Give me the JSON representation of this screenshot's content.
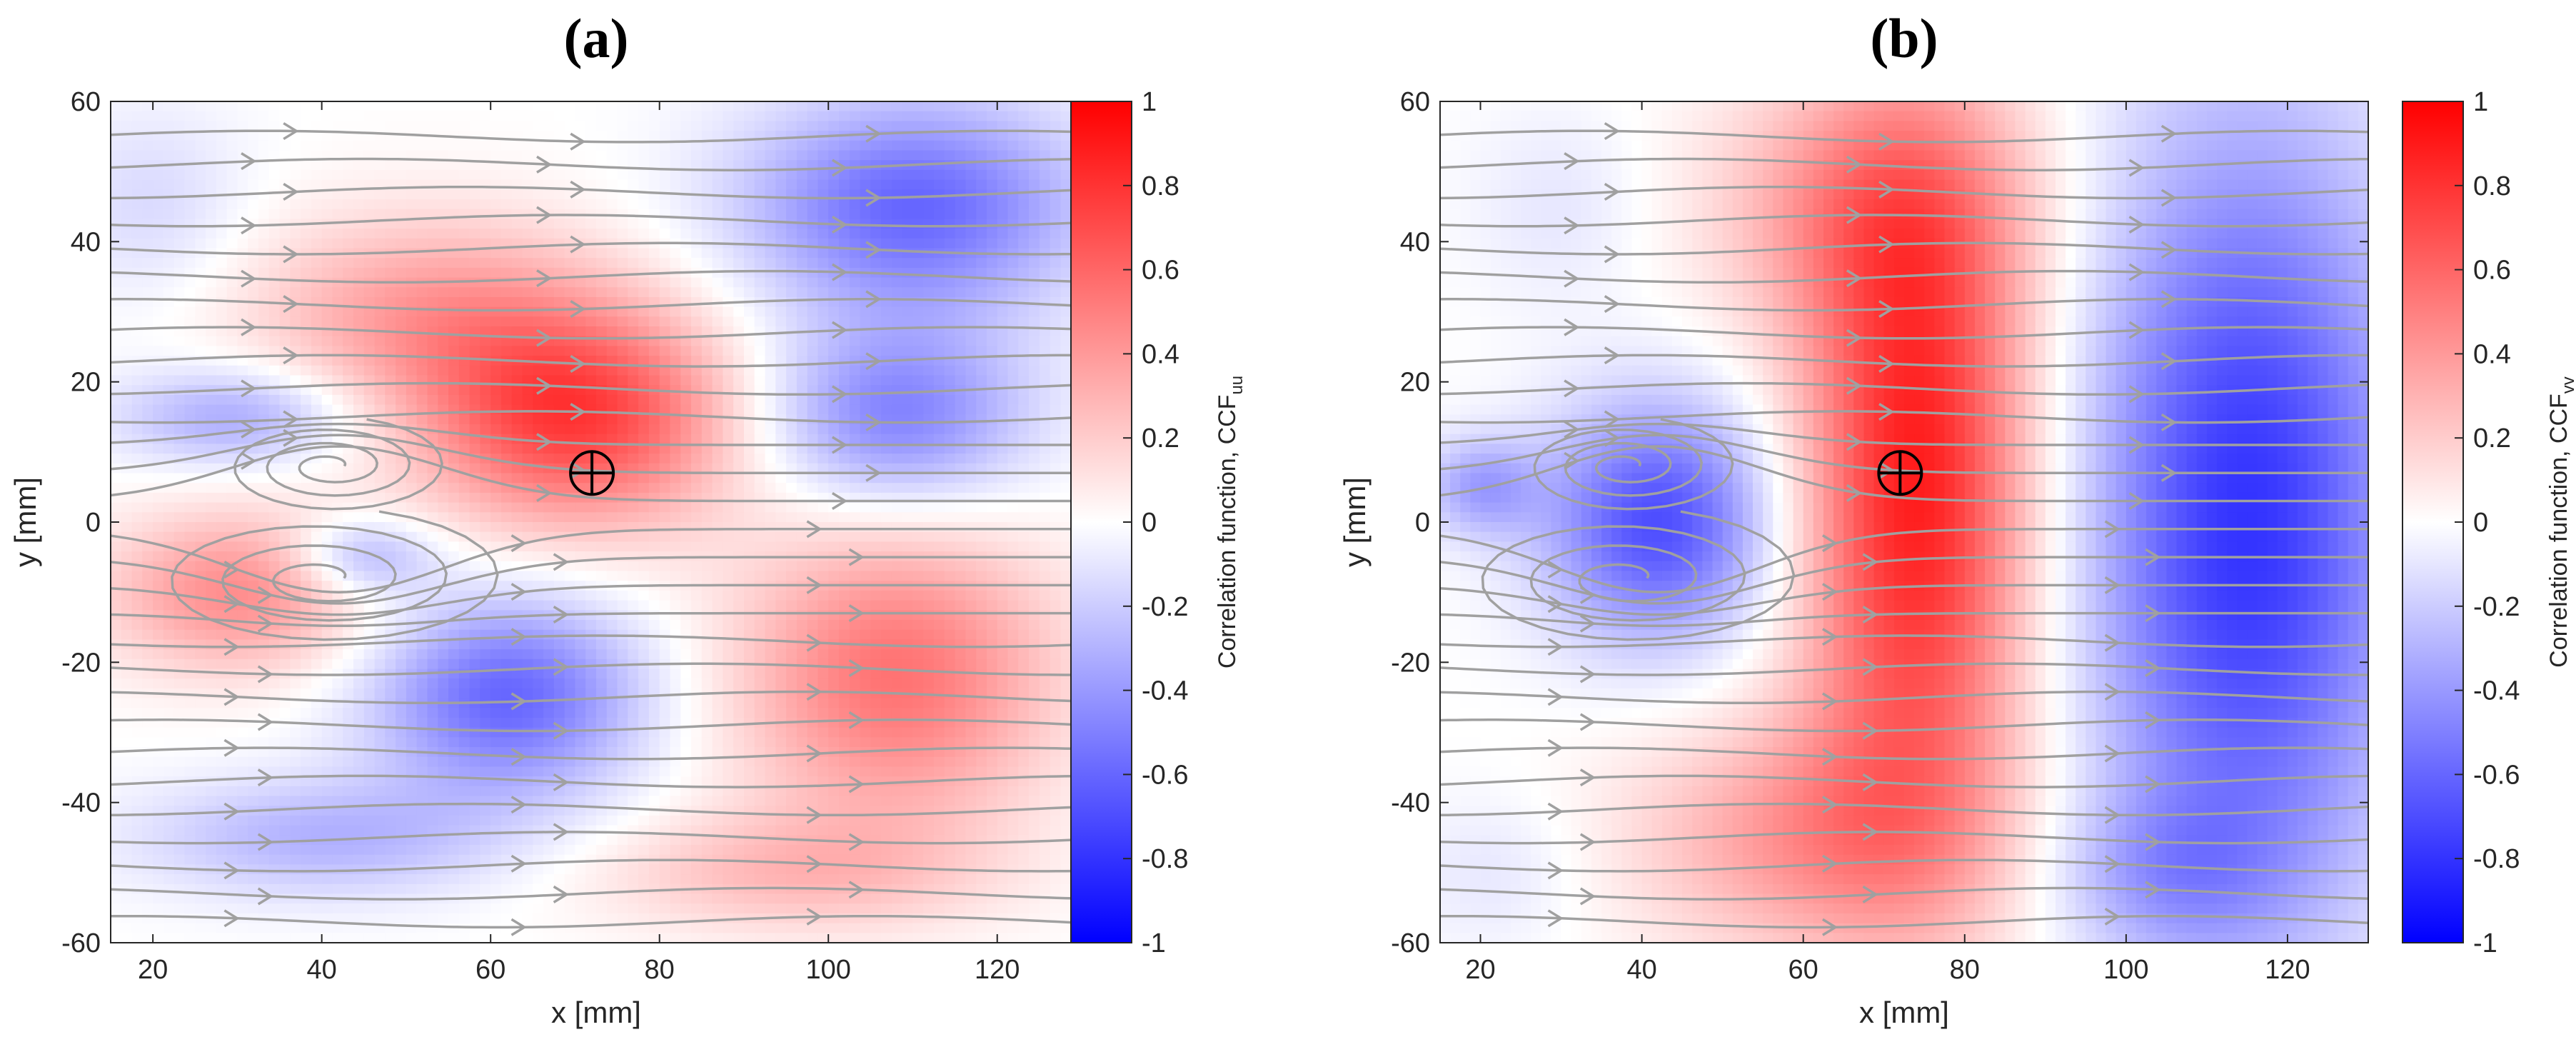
{
  "figure": {
    "colormap": {
      "negative": "#0000ff",
      "zero": "#ffffff",
      "positive": "#ff0000"
    },
    "streamline_color": "#a0a0a0",
    "marker_color": "#000000"
  },
  "chart_data": [
    {
      "type": "heatmap",
      "panel_title": "(a)",
      "xlabel": "x [mm]",
      "ylabel": "y [mm]",
      "xlim": [
        15,
        130
      ],
      "ylim": [
        -60,
        60
      ],
      "xticks": [
        20,
        40,
        60,
        80,
        100,
        120
      ],
      "yticks": [
        60,
        40,
        20,
        0,
        -20,
        -40,
        -60
      ],
      "colorbar": {
        "label_main": "Correlation function, CCF",
        "label_sub": "uu",
        "range": [
          -1,
          1
        ],
        "ticks": [
          "1",
          "0.8",
          "0.6",
          "0.4",
          "0.2",
          "0",
          "-0.2",
          "-0.4",
          "-0.6",
          "-0.8",
          "-1"
        ]
      },
      "reference_point": {
        "x": 72,
        "y": 7
      },
      "blobs": [
        {
          "x": 70,
          "y": 15,
          "sx": 13,
          "sy": 11,
          "v": 0.75
        },
        {
          "x": 52,
          "y": 30,
          "sx": 15,
          "sy": 10,
          "v": 0.35
        },
        {
          "x": 30,
          "y": -10,
          "sx": 11,
          "sy": 8,
          "v": 0.45
        },
        {
          "x": 108,
          "y": -22,
          "sx": 13,
          "sy": 15,
          "v": 0.55
        },
        {
          "x": 95,
          "y": -50,
          "sx": 16,
          "sy": 6,
          "v": 0.25
        },
        {
          "x": 110,
          "y": 45,
          "sx": 14,
          "sy": 11,
          "v": -0.6
        },
        {
          "x": 108,
          "y": 15,
          "sx": 11,
          "sy": 9,
          "v": -0.5
        },
        {
          "x": 62,
          "y": -25,
          "sx": 11,
          "sy": 10,
          "v": -0.6
        },
        {
          "x": 30,
          "y": 15,
          "sx": 10,
          "sy": 5,
          "v": -0.35
        },
        {
          "x": 45,
          "y": -5,
          "sx": 6,
          "sy": 4,
          "v": -0.35
        },
        {
          "x": 40,
          "y": -45,
          "sx": 15,
          "sy": 6,
          "v": -0.3
        },
        {
          "x": 20,
          "y": 45,
          "sx": 8,
          "sy": 10,
          "v": -0.15
        }
      ],
      "vortices": [
        {
          "x": 41,
          "y": 8,
          "rx": 14,
          "ry": 7
        },
        {
          "x": 40,
          "y": -8,
          "rx": 22,
          "ry": 10
        }
      ]
    },
    {
      "type": "heatmap",
      "panel_title": "(b)",
      "xlabel": "x [mm]",
      "ylabel": "y [mm]",
      "xlim": [
        15,
        130
      ],
      "ylim": [
        -60,
        60
      ],
      "xticks": [
        20,
        40,
        60,
        80,
        100,
        120
      ],
      "yticks": [
        60,
        40,
        20,
        0,
        -20,
        -40,
        -60
      ],
      "colorbar": {
        "label_main": "Correlation function, CCF",
        "label_sub": "vv",
        "range": [
          -1,
          1
        ],
        "ticks": [
          "1",
          "0.8",
          "0.6",
          "0.4",
          "0.2",
          "0",
          "-0.2",
          "-0.4",
          "-0.6",
          "-0.8",
          "-1"
        ]
      },
      "reference_point": {
        "x": 72,
        "y": 7
      },
      "blobs": [
        {
          "x": 74,
          "y": 5,
          "sx": 10,
          "sy": 34,
          "v": 0.9
        },
        {
          "x": 68,
          "y": 45,
          "sx": 14,
          "sy": 13,
          "v": 0.35
        },
        {
          "x": 62,
          "y": -45,
          "sx": 16,
          "sy": 12,
          "v": 0.4
        },
        {
          "x": 115,
          "y": 0,
          "sx": 14,
          "sy": 40,
          "v": -0.8
        },
        {
          "x": 42,
          "y": 0,
          "sx": 10,
          "sy": 12,
          "v": -0.7
        },
        {
          "x": 105,
          "y": -50,
          "sx": 10,
          "sy": 8,
          "v": -0.25
        },
        {
          "x": 30,
          "y": 45,
          "sx": 8,
          "sy": 10,
          "v": -0.1
        },
        {
          "x": 22,
          "y": -50,
          "sx": 8,
          "sy": 8,
          "v": -0.1
        },
        {
          "x": 20,
          "y": 5,
          "sx": 5,
          "sy": 5,
          "v": -0.35
        }
      ],
      "vortices": [
        {
          "x": 38,
          "y": 8,
          "rx": 14,
          "ry": 7
        },
        {
          "x": 38,
          "y": -8,
          "rx": 22,
          "ry": 10
        }
      ]
    }
  ]
}
